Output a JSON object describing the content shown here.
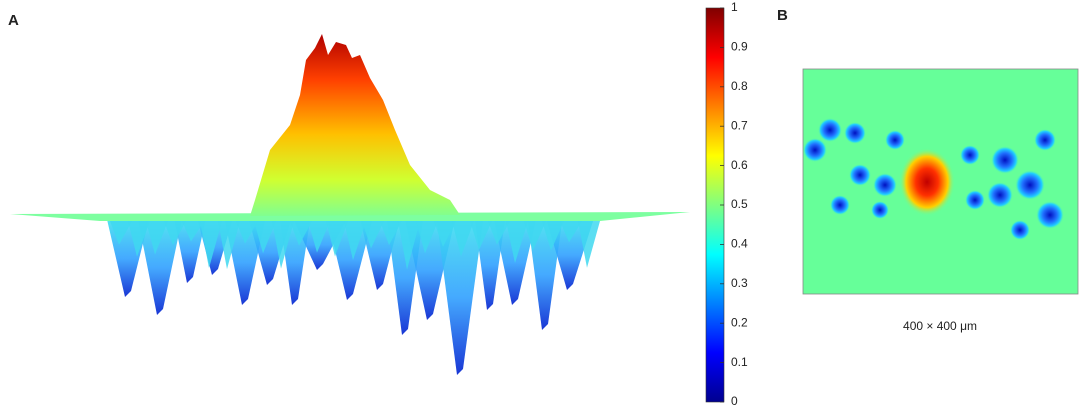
{
  "panels": [
    {
      "label": "A"
    },
    {
      "label": "B",
      "caption": "400 × 400 μm"
    }
  ],
  "colorbar": {
    "ylim": [
      0,
      1
    ],
    "ticks": [
      0,
      0.1,
      0.2,
      0.3,
      0.4,
      0.5,
      0.6,
      0.7,
      0.8,
      0.9,
      1
    ],
    "colormap": [
      "#00008f",
      "#0000ff",
      "#0080ff",
      "#00ffff",
      "#80ff80",
      "#ffff00",
      "#ff8000",
      "#ff0000",
      "#800000"
    ]
  }
}
